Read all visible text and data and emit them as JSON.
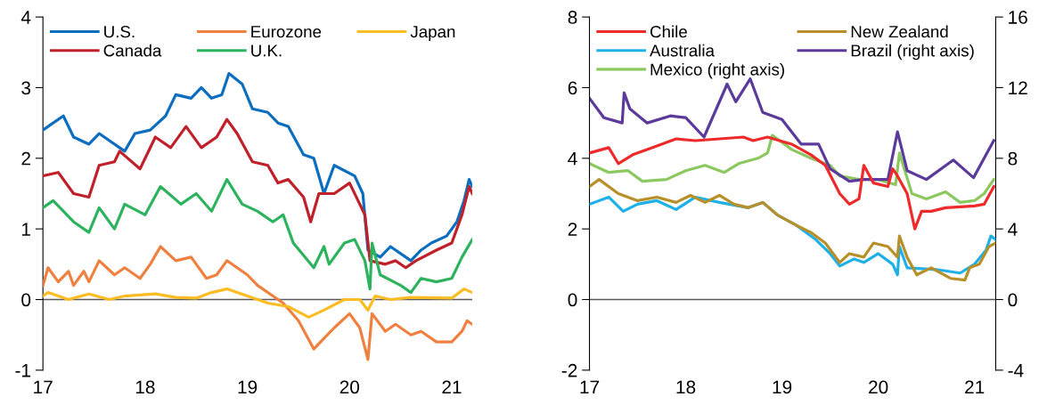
{
  "chart_data": [
    {
      "type": "line",
      "xlim": [
        17,
        21.2
      ],
      "xticks": [
        17,
        18,
        19,
        20,
        21
      ],
      "ylim": [
        -1,
        4
      ],
      "yticks": [
        -1,
        0,
        1,
        2,
        3,
        4
      ],
      "legend": "top",
      "grid": false,
      "ref_lines": [
        {
          "axis": "y",
          "value": 0,
          "color": "#595959"
        }
      ],
      "series": [
        {
          "name": "U.S.",
          "color": "#0b6ebf",
          "x": [
            17,
            17.1,
            17.2,
            17.3,
            17.45,
            17.55,
            17.8,
            17.9,
            18.05,
            18.2,
            18.3,
            18.45,
            18.55,
            18.65,
            18.75,
            18.82,
            18.95,
            19.05,
            19.2,
            19.3,
            19.4,
            19.55,
            19.65,
            19.75,
            19.85,
            20.05,
            20.13,
            20.18,
            20.3,
            20.4,
            20.55,
            20.6,
            20.7,
            20.8,
            20.95,
            21.05,
            21.12,
            21.17,
            21.2
          ],
          "values": [
            2.4,
            2.5,
            2.6,
            2.3,
            2.2,
            2.35,
            2.1,
            2.35,
            2.4,
            2.6,
            2.9,
            2.85,
            3.0,
            2.85,
            2.9,
            3.2,
            3.05,
            2.7,
            2.65,
            2.5,
            2.45,
            2.05,
            2.0,
            1.5,
            1.9,
            1.75,
            1.5,
            0.7,
            0.6,
            0.75,
            0.6,
            0.55,
            0.7,
            0.8,
            0.9,
            1.1,
            1.4,
            1.7,
            1.6
          ]
        },
        {
          "name": "Canada",
          "color": "#c0202a",
          "x": [
            17,
            17.15,
            17.3,
            17.45,
            17.55,
            17.7,
            17.75,
            17.95,
            18.1,
            18.25,
            18.4,
            18.55,
            18.7,
            18.8,
            18.9,
            19.05,
            19.2,
            19.3,
            19.4,
            19.55,
            19.62,
            19.7,
            19.85,
            20.0,
            20.1,
            20.15,
            20.2,
            20.35,
            20.45,
            20.55,
            20.65,
            20.85,
            21.0,
            21.1,
            21.17,
            21.2
          ],
          "values": [
            1.75,
            1.8,
            1.5,
            1.45,
            1.9,
            1.95,
            2.1,
            1.85,
            2.3,
            2.15,
            2.45,
            2.15,
            2.3,
            2.55,
            2.35,
            1.95,
            1.9,
            1.65,
            1.7,
            1.45,
            1.1,
            1.5,
            1.5,
            1.65,
            1.35,
            1.2,
            0.55,
            0.5,
            0.55,
            0.45,
            0.55,
            0.7,
            0.8,
            1.2,
            1.6,
            1.5
          ]
        },
        {
          "name": "Eurozone",
          "color": "#f08040",
          "x": [
            17,
            17.05,
            17.15,
            17.25,
            17.3,
            17.4,
            17.45,
            17.55,
            17.7,
            17.8,
            17.95,
            18.05,
            18.15,
            18.3,
            18.45,
            18.6,
            18.7,
            18.8,
            19.0,
            19.1,
            19.25,
            19.35,
            19.5,
            19.65,
            19.75,
            19.85,
            20.0,
            20.1,
            20.18,
            20.22,
            20.35,
            20.45,
            20.6,
            20.7,
            20.85,
            21.0,
            21.1,
            21.15,
            21.2
          ],
          "values": [
            0.2,
            0.45,
            0.25,
            0.4,
            0.2,
            0.4,
            0.25,
            0.55,
            0.35,
            0.45,
            0.3,
            0.5,
            0.75,
            0.55,
            0.6,
            0.3,
            0.35,
            0.55,
            0.35,
            0.2,
            0.05,
            -0.05,
            -0.3,
            -0.7,
            -0.55,
            -0.4,
            -0.2,
            -0.4,
            -0.85,
            -0.2,
            -0.45,
            -0.35,
            -0.5,
            -0.45,
            -0.6,
            -0.6,
            -0.45,
            -0.3,
            -0.35
          ]
        },
        {
          "name": "U.K.",
          "color": "#2db35e",
          "x": [
            17,
            17.1,
            17.3,
            17.45,
            17.55,
            17.7,
            17.8,
            18.0,
            18.15,
            18.35,
            18.5,
            18.65,
            18.8,
            18.95,
            19.1,
            19.25,
            19.35,
            19.45,
            19.65,
            19.75,
            19.8,
            19.95,
            20.05,
            20.15,
            20.2,
            20.22,
            20.3,
            20.5,
            20.6,
            20.7,
            20.85,
            21.0,
            21.1,
            21.2
          ],
          "values": [
            1.3,
            1.4,
            1.1,
            0.95,
            1.3,
            1.0,
            1.35,
            1.2,
            1.6,
            1.35,
            1.5,
            1.25,
            1.7,
            1.35,
            1.25,
            1.1,
            1.2,
            0.8,
            0.45,
            0.75,
            0.5,
            0.8,
            0.85,
            0.55,
            0.15,
            0.8,
            0.35,
            0.2,
            0.1,
            0.3,
            0.25,
            0.3,
            0.6,
            0.85
          ]
        },
        {
          "name": "Japan",
          "color": "#fbbd23",
          "x": [
            17,
            17.05,
            17.25,
            17.45,
            17.65,
            17.8,
            18.1,
            18.3,
            18.5,
            18.65,
            18.8,
            19.0,
            19.2,
            19.4,
            19.6,
            19.75,
            19.95,
            20.1,
            20.18,
            20.25,
            20.4,
            20.6,
            21.0,
            21.12,
            21.2
          ],
          "values": [
            0.05,
            0.1,
            0.0,
            0.08,
            0.0,
            0.05,
            0.08,
            0.03,
            0.02,
            0.1,
            0.15,
            0.05,
            -0.05,
            -0.1,
            -0.25,
            -0.15,
            0.0,
            0.0,
            -0.15,
            0.05,
            0.0,
            0.03,
            0.02,
            0.15,
            0.1
          ]
        }
      ]
    },
    {
      "type": "line",
      "xlim": [
        17,
        21.22
      ],
      "xticks": [
        17,
        18,
        19,
        20,
        21
      ],
      "ylim": [
        -2,
        8
      ],
      "yticks": [
        -2,
        0,
        2,
        4,
        6,
        8
      ],
      "y2lim": [
        -4,
        16
      ],
      "y2ticks": [
        -4,
        0,
        4,
        8,
        12,
        16
      ],
      "legend": "top",
      "grid": false,
      "ref_lines": [
        {
          "axis": "y",
          "value": 0,
          "color": "#595959"
        }
      ],
      "series": [
        {
          "name": "Chile",
          "color": "#ee2a2a",
          "x": [
            17,
            17.2,
            17.3,
            17.45,
            17.65,
            17.9,
            18.1,
            18.35,
            18.6,
            18.7,
            18.85,
            19.1,
            19.3,
            19.45,
            19.6,
            19.7,
            19.8,
            19.85,
            19.95,
            20.1,
            20.15,
            20.2,
            20.3,
            20.38,
            20.45,
            20.55,
            20.7,
            21.0,
            21.1,
            21.2
          ],
          "values": [
            4.15,
            4.3,
            3.85,
            4.1,
            4.3,
            4.55,
            4.5,
            4.55,
            4.6,
            4.5,
            4.6,
            4.4,
            4.1,
            3.8,
            3.0,
            2.7,
            2.85,
            3.8,
            3.3,
            3.2,
            3.7,
            3.5,
            3.0,
            2.0,
            2.5,
            2.5,
            2.6,
            2.65,
            2.7,
            3.2
          ]
        },
        {
          "name": "Australia",
          "color": "#1eb0e6",
          "x": [
            17,
            17.2,
            17.35,
            17.5,
            17.7,
            17.9,
            18.1,
            18.35,
            18.65,
            18.8,
            18.95,
            19.15,
            19.35,
            19.5,
            19.6,
            19.75,
            19.85,
            20.0,
            20.15,
            20.2,
            20.22,
            20.3,
            20.6,
            20.85,
            21.0,
            21.12,
            21.17,
            21.22
          ],
          "values": [
            2.7,
            2.9,
            2.5,
            2.7,
            2.8,
            2.55,
            2.9,
            2.75,
            2.6,
            2.75,
            2.4,
            2.1,
            1.7,
            1.3,
            0.95,
            1.15,
            1.05,
            1.3,
            1.0,
            0.7,
            1.5,
            0.9,
            0.85,
            0.75,
            1.0,
            1.4,
            1.8,
            1.7
          ]
        },
        {
          "name": "Mexico (right axis)",
          "axis": "y2",
          "color": "#8cc860",
          "x": [
            17,
            17.2,
            17.4,
            17.55,
            17.8,
            18.0,
            18.2,
            18.4,
            18.55,
            18.75,
            18.85,
            18.9,
            19.1,
            19.3,
            19.5,
            19.6,
            19.8,
            20.0,
            20.18,
            20.22,
            20.35,
            20.5,
            20.7,
            20.85,
            21.0,
            21.1,
            21.2
          ],
          "values": [
            7.7,
            7.2,
            7.3,
            6.7,
            6.8,
            7.3,
            7.6,
            7.2,
            7.7,
            8.0,
            8.3,
            9.3,
            8.5,
            8.0,
            7.6,
            7.0,
            6.8,
            6.8,
            6.5,
            8.3,
            6.0,
            5.7,
            6.1,
            5.5,
            5.6,
            6.0,
            6.8
          ]
        },
        {
          "name": "New Zealand",
          "color": "#b8902a",
          "x": [
            17,
            17.1,
            17.3,
            17.5,
            17.7,
            17.9,
            18.05,
            18.2,
            18.35,
            18.5,
            18.65,
            18.8,
            18.95,
            19.15,
            19.3,
            19.45,
            19.6,
            19.7,
            19.85,
            19.95,
            20.1,
            20.2,
            20.22,
            20.3,
            20.4,
            20.55,
            20.75,
            20.9,
            20.95,
            21.05,
            21.15,
            21.22
          ],
          "values": [
            3.2,
            3.4,
            3.0,
            2.8,
            2.9,
            2.75,
            2.95,
            2.75,
            2.95,
            2.7,
            2.6,
            2.75,
            2.4,
            2.1,
            1.9,
            1.6,
            1.05,
            1.3,
            1.2,
            1.6,
            1.5,
            1.2,
            1.8,
            1.2,
            0.7,
            0.9,
            0.6,
            0.55,
            0.9,
            1.0,
            1.5,
            1.6
          ]
        },
        {
          "name": "Brazil (right axis)",
          "axis": "y2",
          "color": "#5b3a9b",
          "x": [
            17,
            17.15,
            17.34,
            17.36,
            17.42,
            17.6,
            17.84,
            18.0,
            18.19,
            18.43,
            18.52,
            18.67,
            18.8,
            19.0,
            19.2,
            19.38,
            19.5,
            19.7,
            19.85,
            20.1,
            20.2,
            20.3,
            20.5,
            20.78,
            20.99,
            21.1,
            21.2
          ],
          "values": [
            11.4,
            10.3,
            10.0,
            11.7,
            10.8,
            10.0,
            10.4,
            10.3,
            9.2,
            12.2,
            11.2,
            12.5,
            10.6,
            10.2,
            8.8,
            8.8,
            7.4,
            6.7,
            6.8,
            6.8,
            9.5,
            7.3,
            6.8,
            7.9,
            6.9,
            8.0,
            9.0
          ]
        }
      ]
    }
  ]
}
